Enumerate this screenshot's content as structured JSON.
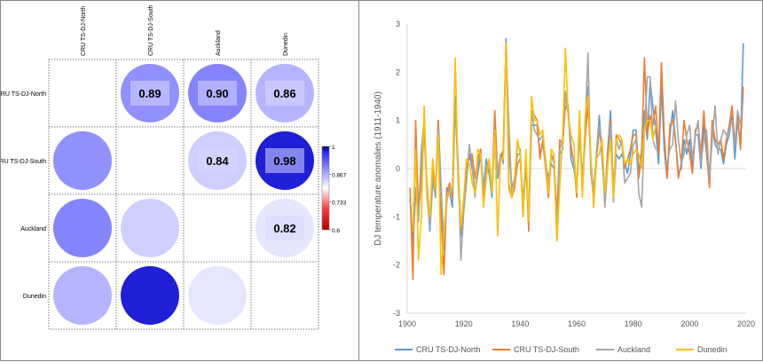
{
  "chart_data": [
    {
      "type": "heatmap",
      "variables": [
        "CRU TS-DJ-North",
        "CRU TS-DJ-South",
        "Auckland",
        "Dunedin"
      ],
      "row_labels": [
        "CRU TS-DJ-North",
        "CRU TS-DJ-South",
        "Auckland",
        "Dunedin"
      ],
      "col_labels": [
        "CRU TS-DJ-North",
        "CRU TS-DJ-South",
        "Auckland",
        "Dunedin"
      ],
      "matrix": [
        [
          null,
          0.89,
          0.9,
          0.86
        ],
        [
          0.89,
          null,
          0.84,
          0.98
        ],
        [
          0.9,
          0.84,
          null,
          0.82
        ],
        [
          0.86,
          0.98,
          0.82,
          null
        ]
      ],
      "value_labels": {
        "0-1": "0.89",
        "0-2": "0.90",
        "0-3": "0.86",
        "1-2": "0.84",
        "1-3": "0.98",
        "2-3": "0.82"
      },
      "colorbar": {
        "ticks": [
          "1",
          "0.867",
          "0.733",
          "0.6"
        ],
        "range": [
          0.6,
          1
        ],
        "colors": {
          "high": "#00008b",
          "mid_high": "#2e2eff",
          "mid": "#ffffff",
          "mid_low": "#ff3a3a",
          "low": "#b50000"
        }
      }
    },
    {
      "type": "line",
      "xlabel": "",
      "ylabel": "DJ temperature anomalies (1911-1940)",
      "xlim": [
        1900,
        2020
      ],
      "ylim": [
        -3,
        3
      ],
      "xticks": [
        "1900",
        "1920",
        "1940",
        "1960",
        "1980",
        "2000",
        "2020"
      ],
      "yticks": [
        "3",
        "2",
        "1",
        "0",
        "-1",
        "-2",
        "-3"
      ],
      "legend_position": "bottom",
      "x_start": 1901,
      "series": [
        {
          "name": "CRU TS-DJ-North",
          "color": "#5b9bd5",
          "values": [
            -0.6,
            -1.6,
            -0.5,
            -0.9,
            0.2,
            0.8,
            -0.4,
            -1.3,
            -0.3,
            -0.5,
            1.0,
            -0.4,
            -1.7,
            -0.4,
            -0.5,
            -0.8,
            1.5,
            -0.2,
            -1.4,
            -0.8,
            0.0,
            0.3,
            0.0,
            -0.5,
            -0.1,
            0.3,
            -0.4,
            0.2,
            -0.1,
            -0.6,
            0.8,
            -0.2,
            0.2,
            0.3,
            2.7,
            0.4,
            -0.4,
            -0.2,
            0.3,
            0.3,
            -1.0,
            0.1,
            -1.0,
            0.9,
            0.9,
            0.9,
            0.3,
            0.5,
            0.1,
            -0.2,
            0.1,
            0.0,
            -1.2,
            0.3,
            0.4,
            1.5,
            1.3,
            0.2,
            0.0,
            -0.4,
            0.9,
            -0.2,
            0.6,
            1.7,
            0.2,
            -0.5,
            0.3,
            1.1,
            0.2,
            -0.6,
            0.4,
            1.2,
            -0.6,
            0.3,
            0.2,
            0.3,
            0.1,
            -0.1,
            0.3,
            0.8,
            0.8,
            -0.1,
            0.4,
            1.2,
            0.6,
            1.8,
            1.3,
            0.8,
            0.1,
            1.7,
            0.4,
            -0.2,
            0.7,
            1.2,
            0.6,
            -0.1,
            0.0,
            0.6,
            0.3,
            0.6,
            0.0,
            0.7,
            0.7,
            0.0,
            0.9,
            0.3,
            -0.3,
            0.9,
            0.5,
            0.4,
            0.4,
            0.1,
            0.5,
            0.7,
            1.1,
            0.2,
            1.0,
            0.5,
            2.6
          ]
        },
        {
          "name": "CRU TS-DJ-South",
          "color": "#ed7d31",
          "values": [
            -0.4,
            -2.3,
            1.0,
            -0.9,
            -0.3,
            0.8,
            -0.3,
            -1.1,
            0.1,
            -0.6,
            1.0,
            -1.0,
            -2.2,
            -0.5,
            -0.3,
            -0.6,
            1.3,
            0.1,
            -1.3,
            -0.7,
            0.1,
            0.2,
            0.3,
            -0.2,
            0.2,
            0.4,
            -0.7,
            0.0,
            0.1,
            -0.5,
            1.2,
            -0.1,
            0.2,
            0.4,
            2.6,
            -0.4,
            -0.6,
            -0.4,
            0.1,
            0.2,
            -0.7,
            0.2,
            -1.3,
            1.2,
            1.1,
            1.0,
            0.2,
            0.6,
            0.0,
            -0.6,
            0.3,
            0.2,
            -1.0,
            0.6,
            0.5,
            1.3,
            1.2,
            0.3,
            0.2,
            -0.6,
            1.1,
            -0.5,
            0.7,
            1.3,
            0.2,
            -0.8,
            0.2,
            0.8,
            0.4,
            -0.7,
            0.3,
            1.0,
            -0.5,
            0.7,
            0.6,
            0.5,
            0.0,
            0.2,
            0.4,
            0.7,
            0.7,
            -0.2,
            0.3,
            2.3,
            0.7,
            1.1,
            0.9,
            1.3,
            0.3,
            2.2,
            0.7,
            -0.2,
            0.9,
            1.0,
            0.6,
            -0.2,
            0.1,
            1.0,
            0.6,
            0.3,
            -0.1,
            0.8,
            0.9,
            0.3,
            1.2,
            0.4,
            -0.4,
            1.0,
            0.6,
            0.5,
            0.6,
            0.2,
            0.6,
            0.9,
            1.3,
            0.5,
            1.1,
            0.4,
            1.7
          ]
        },
        {
          "name": "Auckland",
          "color": "#a5a5a5",
          "values": [
            null,
            -0.8,
            -0.4,
            -1.1,
            0.4,
            1.0,
            -0.6,
            -1.2,
            -0.2,
            -0.6,
            0.8,
            -0.5,
            -1.5,
            -0.7,
            -0.4,
            -0.5,
            1.3,
            0.2,
            -1.9,
            -0.9,
            -0.3,
            0.5,
            0.1,
            -0.6,
            0.1,
            0.3,
            -0.5,
            0.1,
            0.1,
            -0.5,
            0.7,
            -0.1,
            0.3,
            0.1,
            2.5,
            0.9,
            -0.5,
            -0.3,
            0.5,
            0.4,
            -0.9,
            0.3,
            -1.1,
            1.2,
            0.8,
            0.7,
            0.6,
            0.7,
            0.2,
            -0.4,
            0.3,
            0.1,
            -1.5,
            0.4,
            0.6,
            1.6,
            1.1,
            0.5,
            0.1,
            -0.5,
            0.7,
            -0.4,
            0.9,
            2.4,
            -0.1,
            -0.6,
            0.3,
            0.9,
            0.5,
            -0.8,
            0.1,
            0.9,
            -0.7,
            0.6,
            0.4,
            0.6,
            -0.3,
            -0.2,
            -0.1,
            0.5,
            0.6,
            -0.5,
            -0.8,
            0.8,
            1.9,
            1.9,
            0.6,
            0.4,
            null,
            null,
            0.1,
            0.1,
            0.4,
            0.5,
            1.4,
            0.6,
            0.1,
            0.3,
            0.7,
            0.9,
            0.2,
            0.7,
            1.0,
            0.1,
            0.6,
            0.8,
            -0.2,
            0.6,
            1.3,
            0.3,
            0.6,
            0.8,
            0.7,
            0.8,
            1.0,
            0.5,
            1.2,
            0.9,
            1.5
          ]
        },
        {
          "name": "Dunedin",
          "color": "#ffc000",
          "values": [
            null,
            -1.3,
            0.4,
            -1.9,
            -1.0,
            1.3,
            -0.5,
            -1.0,
            0.2,
            -0.4,
            0.7,
            -2.2,
            -1.3,
            -0.6,
            -0.5,
            -0.4,
            2.3,
            -0.1,
            -1.2,
            -0.6,
            0.2,
            0.1,
            -0.3,
            -0.5,
            0.4,
            0.3,
            -0.8,
            -0.2,
            0.2,
            -0.5,
            0.8,
            -1.4,
            0.2,
            0.2,
            2.6,
            -0.3,
            -0.6,
            -0.2,
            0.6,
            0.3,
            -1.0,
            0.4,
            -1.1,
            1.5,
            1.0,
            1.0,
            0.7,
            0.8,
            0.1,
            -0.5,
            0.4,
            0.3,
            -1.5,
            -0.4,
            0.6,
            2.5,
            1.1,
            0.7,
            0.5,
            -0.5,
            1.2,
            -0.6,
            1.1,
            1.5,
            0.3,
            -0.8,
            0.2,
            0.3,
            0.6,
            -0.5,
            0.1,
            0.6,
            -0.6,
            0.6,
            0.7,
            0.6,
            0.1,
            0.2,
            0.1,
            0.3,
            0.4,
            0.3,
            0.0,
            0.8,
            1.0,
            1.0,
            0.6,
            0.9,
            null,
            null,
            null,
            null,
            null,
            null,
            null,
            null,
            null,
            null,
            null,
            null,
            null,
            null,
            null,
            null,
            null,
            null,
            null,
            null,
            null,
            null,
            null,
            null,
            null,
            null,
            null,
            null,
            null,
            null,
            null
          ]
        }
      ]
    }
  ]
}
